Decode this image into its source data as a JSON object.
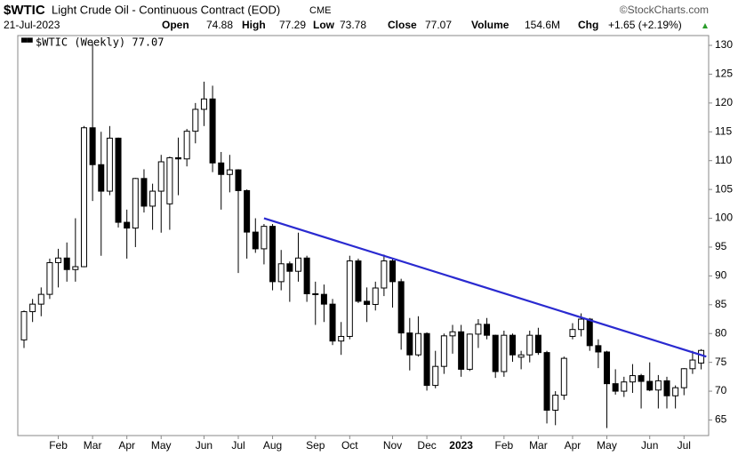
{
  "header": {
    "symbol": "$WTIC",
    "name": "Light Crude Oil - Continuous Contract (EOD)",
    "exchange": "CME",
    "brand": "©StockCharts.com",
    "date": "21-Jul-2023",
    "stats": [
      {
        "label": "Open",
        "value": 74.88
      },
      {
        "label": "High",
        "value": 77.29
      },
      {
        "label": "Low",
        "value": 73.78
      },
      {
        "label": "Close",
        "value": 77.07
      },
      {
        "label": "Volume",
        "value": "154.6M"
      },
      {
        "label": "Chg",
        "value": "+1.65 (+2.19%)"
      }
    ]
  },
  "chart_data": {
    "type": "candlestick",
    "legend": "$WTIC (Weekly) 77.07",
    "categories": [
      null,
      null,
      null,
      null,
      "Feb",
      null,
      null,
      null,
      "Mar",
      null,
      null,
      null,
      "Apr",
      null,
      null,
      null,
      "May",
      null,
      null,
      null,
      null,
      "Jun",
      null,
      null,
      null,
      "Jul",
      null,
      null,
      null,
      "Aug",
      null,
      null,
      null,
      null,
      "Sep",
      null,
      null,
      null,
      "Oct",
      null,
      null,
      null,
      null,
      "Nov",
      null,
      null,
      null,
      "Dec",
      null,
      null,
      null,
      "2023",
      null,
      null,
      null,
      null,
      "Feb",
      null,
      null,
      null,
      "Mar",
      null,
      null,
      null,
      "Apr",
      null,
      null,
      null,
      "May",
      null,
      null,
      null,
      null,
      "Jun",
      null,
      null,
      null,
      "Jul",
      null,
      null
    ],
    "open": [
      78.9,
      83.8,
      85.1,
      86.8,
      92.3,
      93.1,
      91.1,
      91.6,
      115.7,
      109.3,
      104.7,
      113.9,
      99.3,
      98.3,
      106.9,
      102.1,
      104.7,
      102.5,
      110.5,
      110.3,
      115.1,
      118.9,
      120.7,
      109.6,
      107.6,
      108.4,
      104.8,
      97.6,
      94.7,
      98.6,
      89,
      92.1,
      90.8,
      93.1,
      86.9,
      86.8,
      85.1,
      78.7,
      79.5,
      92.6,
      85.6,
      85.05,
      87.9,
      92.6,
      89,
      80.1,
      76.3,
      80,
      71,
      74.3,
      79.6,
      80.3,
      73.8,
      79.9,
      81.6,
      79.7,
      73.4,
      79.7,
      75.9,
      76.3,
      79.7,
      76.7,
      66.7,
      69.3,
      79.5,
      80.7,
      82.5,
      77.9,
      76.8,
      71.3,
      70,
      71.6,
      72.7,
      71.7,
      70.2,
      71.8,
      69.2,
      70.6,
      73.9,
      74.88
    ],
    "high": [
      84,
      86,
      88,
      93,
      94.7,
      95.8,
      100,
      116,
      130.5,
      115,
      116,
      114,
      101.5,
      107,
      108.5,
      106,
      111,
      110.7,
      114,
      115.5,
      120,
      123.7,
      123,
      111.5,
      111,
      108.5,
      105,
      100,
      99,
      99,
      94.5,
      92.5,
      97.5,
      93.5,
      89,
      88.5,
      86,
      82,
      93.5,
      93,
      88,
      89,
      93.7,
      93,
      89.5,
      82.7,
      83,
      80.2,
      77,
      80,
      81.5,
      81.5,
      80,
      82.5,
      82.7,
      79.8,
      80.5,
      80,
      77,
      80.5,
      81,
      77,
      70,
      76,
      81.8,
      83.5,
      82.7,
      79,
      77,
      73.8,
      72.5,
      74.7,
      73,
      75,
      72.8,
      72.5,
      71,
      74,
      77,
      77.29
    ],
    "low": [
      77.5,
      82,
      83,
      86,
      88,
      89,
      89,
      91.5,
      103,
      93.5,
      104,
      98.4,
      93,
      95,
      101,
      98,
      97.5,
      98,
      104,
      109,
      113,
      116,
      108,
      101.5,
      104.5,
      90.5,
      93,
      94,
      92,
      87.5,
      87.5,
      85.5,
      89,
      85.5,
      81.5,
      82,
      78,
      76.3,
      79,
      85.3,
      82,
      84,
      86.5,
      84.5,
      77.2,
      73.6,
      76,
      70.1,
      70.5,
      73,
      76.5,
      72.5,
      73.5,
      77.5,
      79,
      72.3,
      72.5,
      75.1,
      73.8,
      75,
      76.3,
      64.4,
      64.1,
      68.5,
      79,
      79.5,
      77,
      74,
      63.6,
      69.4,
      69,
      69.7,
      67,
      70,
      67,
      67,
      67,
      69.3,
      73,
      73.78
    ],
    "close": [
      83.8,
      85.1,
      86.8,
      92.3,
      93.1,
      91.1,
      91.6,
      115.7,
      109.3,
      104.7,
      113.9,
      99.3,
      98.3,
      106.9,
      102.1,
      104.7,
      109.8,
      110.5,
      110.3,
      115.1,
      118.9,
      120.7,
      109.6,
      107.6,
      108.4,
      104.8,
      97.6,
      94.7,
      98.6,
      89,
      92.1,
      90.8,
      93.1,
      86.9,
      86.8,
      85.1,
      78.7,
      79.5,
      92.6,
      85.6,
      85.05,
      87.9,
      92.6,
      89,
      80.1,
      76.3,
      80,
      71,
      74.3,
      79.6,
      80.3,
      73.8,
      79.9,
      81.6,
      79.7,
      73.4,
      79.7,
      76.3,
      76.3,
      79.7,
      76.7,
      66.7,
      69.3,
      75.7,
      80.7,
      82.5,
      77.9,
      76.8,
      71.3,
      70,
      71.6,
      72.7,
      71.7,
      70.2,
      71.8,
      69.2,
      70.6,
      73.9,
      75.4,
      77.07
    ],
    "up_color": "#ffffff",
    "down_color": "#000000",
    "edge_color": "#000000",
    "trendline": {
      "x": [
        28,
        79.6
      ],
      "y": [
        100,
        76
      ],
      "color": "#2a2ad0"
    },
    "ylim": [
      62.3,
      131.7
    ],
    "yticks": [
      65,
      70,
      75,
      80,
      85,
      90,
      95,
      100,
      105,
      110,
      115,
      120,
      125,
      130
    ],
    "grid": false
  }
}
